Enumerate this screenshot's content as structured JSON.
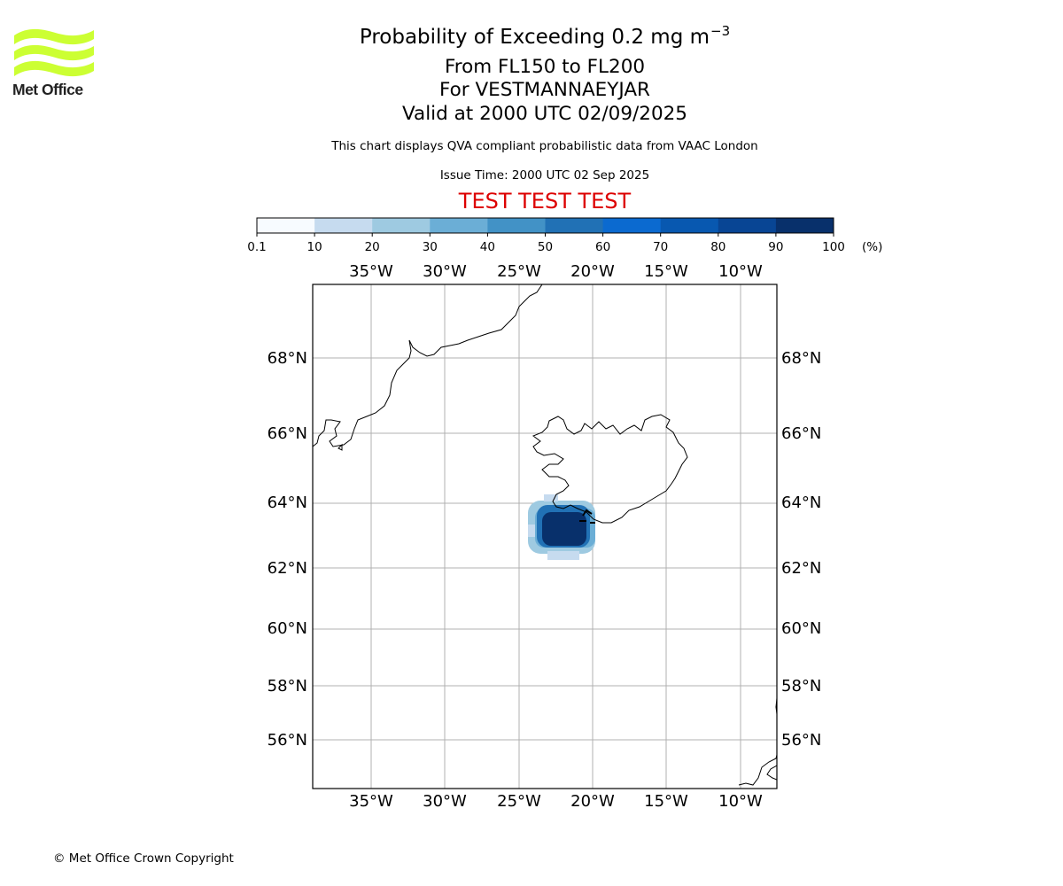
{
  "logo": {
    "text": "Met Office",
    "icon": "met-office-waves-icon",
    "color": "#ccff33"
  },
  "title": {
    "main_prefix": "Probability of Exceeding 0.2 mg m",
    "main_exp": "−3",
    "line2": "From FL150 to FL200",
    "line3": "For VESTMANNAEYJAR",
    "line4": "Valid at 2000 UTC 02/09/2025"
  },
  "subtitle": "This chart displays QVA compliant probabilistic data from VAAC London",
  "issue_time": "Issue Time: 2000 UTC 02 Sep 2025",
  "test_banner": "TEST TEST TEST",
  "test_color": "#dd0000",
  "colorbar": {
    "ticks": [
      "0.1",
      "10",
      "20",
      "30",
      "40",
      "50",
      "60",
      "70",
      "80",
      "90",
      "100"
    ],
    "unit": "(%)",
    "colors": [
      "#f7fbff",
      "#c6dbef",
      "#9ecae1",
      "#6baed6",
      "#4292c6",
      "#2171b5",
      "#0b6ad0",
      "#0858b0",
      "#084594",
      "#08306b"
    ]
  },
  "axes": {
    "lon_labels": [
      "35°W",
      "30°W",
      "25°W",
      "20°W",
      "15°W",
      "10°W"
    ],
    "lat_labels": [
      "68°N",
      "66°N",
      "64°N",
      "62°N",
      "60°N",
      "58°N",
      "56°N"
    ]
  },
  "copyright": "© Met Office Crown Copyright"
}
